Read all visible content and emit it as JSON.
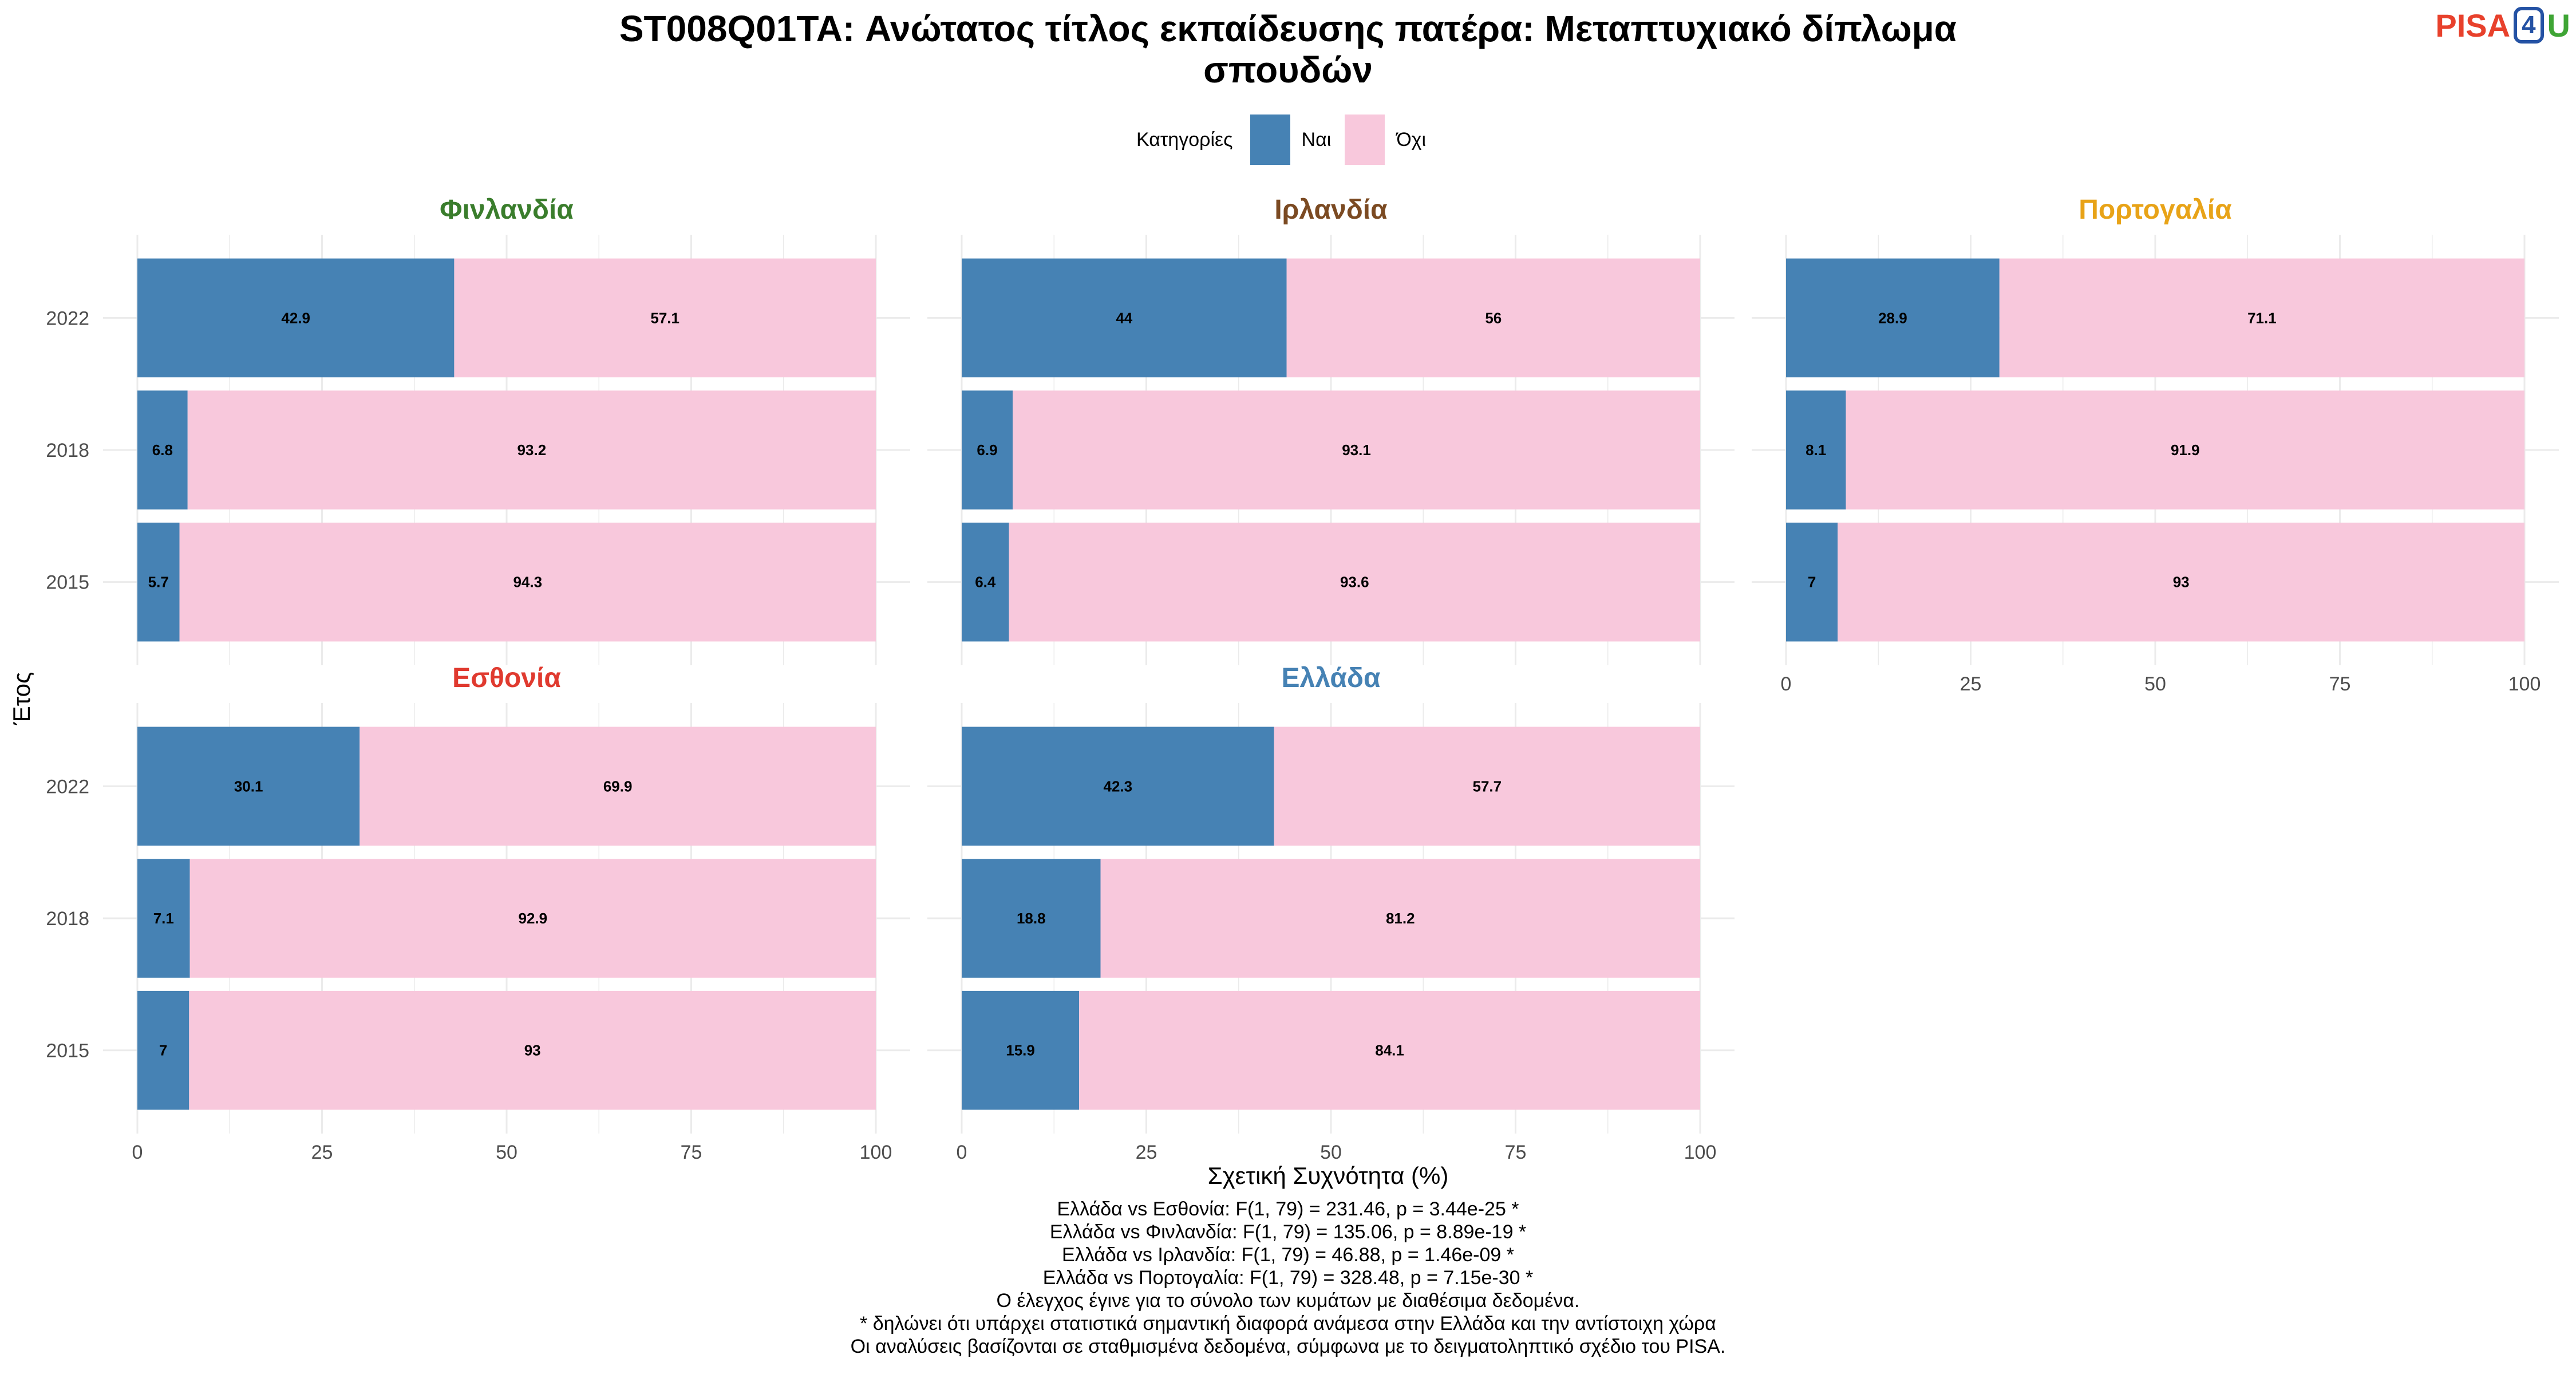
{
  "title_lines": [
    "ST008Q01TA: Ανώτατος τίτλος εκπαίδευσης πατέρα: Μεταπτυχιακό δίπλωμα",
    "σπουδών"
  ],
  "logo": {
    "part1": "PISA",
    "part2": "4",
    "part3": "U"
  },
  "colors": {
    "nai": "#4682b4",
    "oxi": "#f8c8dc",
    "grid": "#ebebeb",
    "axis_text": "#4d4d4d"
  },
  "legend": {
    "title": "Κατηγορίες",
    "items": [
      {
        "label": "Ναι",
        "color": "#4682b4"
      },
      {
        "label": "Όχι",
        "color": "#f8c8dc"
      }
    ]
  },
  "chart_data": {
    "type": "bar",
    "orientation": "horizontal",
    "stacked": true,
    "xlabel": "Σχετική Συχνότητα (%)",
    "ylabel": "Έτος",
    "xlim": [
      0,
      100
    ],
    "x_ticks": [
      "0",
      "25",
      "50",
      "75",
      "100"
    ],
    "categories": [
      "2022",
      "2018",
      "2015"
    ],
    "series_labels": [
      "Ναι",
      "Όχι"
    ],
    "panels": [
      {
        "country": "Φινλανδία",
        "title_color": "#3a7d2c",
        "nai": [
          42.9,
          6.8,
          5.7
        ],
        "oxi": [
          57.1,
          93.2,
          94.3
        ],
        "nai_labels": [
          "42.9",
          "6.8",
          "5.7"
        ],
        "oxi_labels": [
          "57.1",
          "93.2",
          "94.3"
        ]
      },
      {
        "country": "Ιρλανδία",
        "title_color": "#7b4a22",
        "nai": [
          44,
          6.9,
          6.4
        ],
        "oxi": [
          56,
          93.1,
          93.6
        ],
        "nai_labels": [
          "44",
          "6.9",
          "6.4"
        ],
        "oxi_labels": [
          "56",
          "93.1",
          "93.6"
        ]
      },
      {
        "country": "Πορτογαλία",
        "title_color": "#e8a317",
        "nai": [
          28.9,
          8.1,
          7
        ],
        "oxi": [
          71.1,
          91.9,
          93
        ],
        "nai_labels": [
          "28.9",
          "8.1",
          "7"
        ],
        "oxi_labels": [
          "71.1",
          "91.9",
          "93"
        ]
      },
      {
        "country": "Εσθονία",
        "title_color": "#e03a2f",
        "nai": [
          30.1,
          7.1,
          7
        ],
        "oxi": [
          69.9,
          92.9,
          93
        ],
        "nai_labels": [
          "30.1",
          "7.1",
          "7"
        ],
        "oxi_labels": [
          "69.9",
          "92.9",
          "93"
        ]
      },
      {
        "country": "Ελλάδα",
        "title_color": "#4682b4",
        "nai": [
          42.3,
          18.8,
          15.9
        ],
        "oxi": [
          57.7,
          81.2,
          84.1
        ],
        "nai_labels": [
          "42.3",
          "18.8",
          "15.9"
        ],
        "oxi_labels": [
          "57.7",
          "81.2",
          "84.1"
        ]
      }
    ]
  },
  "footer_lines": [
    "Ελλάδα vs Εσθονία: F(1, 79) = 231.46, p = 3.44e-25 *",
    "Ελλάδα vs Φινλανδία: F(1, 79) = 135.06, p = 8.89e-19 *",
    "Ελλάδα vs Ιρλανδία: F(1, 79) = 46.88, p = 1.46e-09 *",
    "Ελλάδα vs Πορτογαλία: F(1, 79) = 328.48, p = 7.15e-30 *",
    "Ο έλεγχος έγινε για το σύνολο των κυμάτων με διαθέσιμα δεδομένα.",
    "* δηλώνει ότι υπάρχει στατιστικά σημαντική διαφορά ανάμεσα στην Ελλάδα και την αντίστοιχη χώρα",
    "Οι αναλύσεις βασίζονται σε σταθμισμένα δεδομένα, σύμφωνα με το δειγματοληπτικό σχέδιο του PISA."
  ]
}
